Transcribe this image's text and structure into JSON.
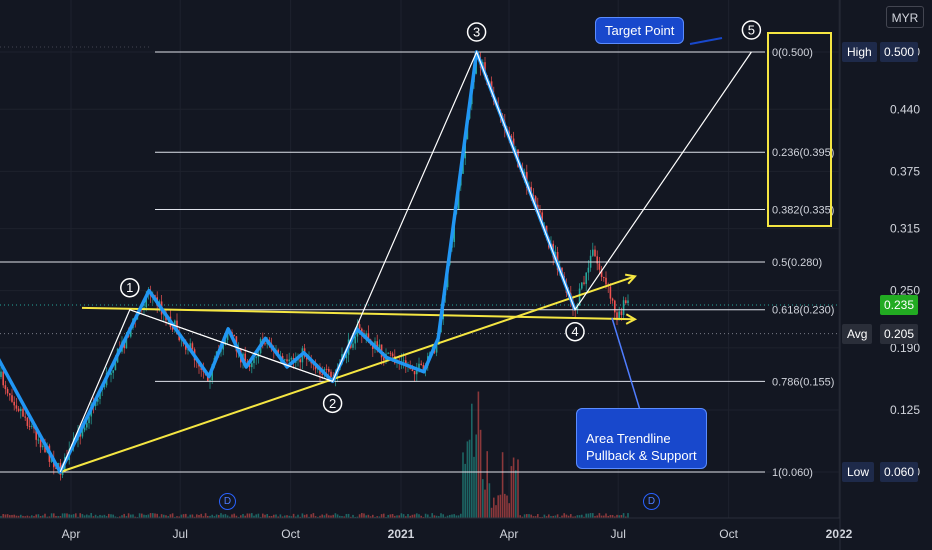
{
  "currency": "MYR",
  "chart_data": {
    "type": "candlestick",
    "currency": "MYR",
    "x_ticks": [
      "Apr",
      "Jul",
      "Oct",
      "2021",
      "Apr",
      "Jul",
      "Oct",
      "2022"
    ],
    "y_ticks": [
      0.5,
      0.44,
      0.375,
      0.315,
      0.25,
      0.19,
      0.125,
      0.06
    ],
    "ylim": [
      0.0,
      0.53
    ],
    "last_price": "0.235",
    "price_labels": [
      {
        "tag": "High",
        "value": "0.500"
      },
      {
        "tag": "Avg",
        "value": "0.205"
      },
      {
        "tag": "Low",
        "value": "0.060"
      }
    ],
    "fib_levels": [
      {
        "label": "0(0.500)",
        "price": 0.5
      },
      {
        "label": "0.236(0.395)",
        "price": 0.395
      },
      {
        "label": "0.382(0.335)",
        "price": 0.335
      },
      {
        "label": "0.5(0.280)",
        "price": 0.28
      },
      {
        "label": "0.618(0.230)",
        "price": 0.23
      },
      {
        "label": "0.786(0.155)",
        "price": 0.155
      },
      {
        "label": "1(0.060)",
        "price": 0.06
      }
    ],
    "wave_points": [
      {
        "label": "1",
        "date": "2020-05-20",
        "price": 0.23
      },
      {
        "label": "2",
        "date": "2020-11-05",
        "price": 0.155
      },
      {
        "label": "3",
        "date": "2021-03-05",
        "price": 0.5
      },
      {
        "label": "4",
        "date": "2021-05-26",
        "price": 0.23
      },
      {
        "label": "5",
        "date": "2021-10-20",
        "price": 0.5
      }
    ],
    "blue_zigzag": [
      {
        "date": "2020-01-20",
        "price": 0.185
      },
      {
        "date": "2020-03-23",
        "price": 0.06
      },
      {
        "date": "2020-06-05",
        "price": 0.25
      },
      {
        "date": "2020-07-25",
        "price": 0.16
      },
      {
        "date": "2020-08-10",
        "price": 0.21
      },
      {
        "date": "2020-08-25",
        "price": 0.17
      },
      {
        "date": "2020-09-10",
        "price": 0.2
      },
      {
        "date": "2020-09-28",
        "price": 0.17
      },
      {
        "date": "2020-10-12",
        "price": 0.185
      },
      {
        "date": "2020-11-05",
        "price": 0.155
      },
      {
        "date": "2020-11-25",
        "price": 0.21
      },
      {
        "date": "2020-12-20",
        "price": 0.18
      },
      {
        "date": "2021-01-20",
        "price": 0.165
      },
      {
        "date": "2021-02-01",
        "price": 0.2
      },
      {
        "date": "2021-03-05",
        "price": 0.5
      },
      {
        "date": "2021-05-26",
        "price": 0.23
      }
    ],
    "white_path": [
      {
        "date": "2020-03-23",
        "price": 0.06
      },
      {
        "date": "2020-05-20",
        "price": 0.23
      },
      {
        "date": "2020-11-05",
        "price": 0.155
      },
      {
        "date": "2021-03-05",
        "price": 0.5
      },
      {
        "date": "2021-05-26",
        "price": 0.23
      },
      {
        "date": "2021-10-20",
        "price": 0.5
      }
    ],
    "yellow_lines": [
      {
        "from": {
          "date": "2020-03-23",
          "price": 0.06
        },
        "to": {
          "date": "2021-07-15",
          "price": 0.265
        }
      },
      {
        "from": {
          "date": "2020-01-10",
          "price": 0.232
        },
        "to": {
          "date": "2021-07-15",
          "price": 0.22
        }
      }
    ],
    "annotations": [
      {
        "text": "Target Point"
      },
      {
        "text": "Area Trendline\nPullback & Support"
      }
    ],
    "dividend_markers": [
      "D",
      "D"
    ]
  }
}
